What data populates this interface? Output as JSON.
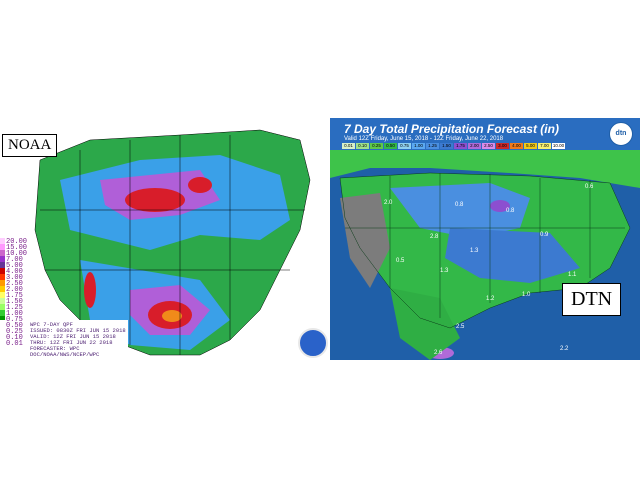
{
  "panels": {
    "noaa": {
      "label": "NOAA",
      "legend_values": [
        "20.00",
        "15.00",
        "10.00",
        "7.00",
        "5.00",
        "4.00",
        "3.00",
        "2.50",
        "2.00",
        "1.75",
        "1.50",
        "1.25",
        "1.00",
        "0.75",
        "0.50",
        "0.25",
        "0.10",
        "0.01"
      ],
      "issued_lines": [
        "WPC 7-DAY QPF",
        "ISSUED: 0830Z FRI JUN 15 2018",
        "VALID: 12Z FRI JUN 15 2018",
        "THRU: 12Z FRI JUN 22 2018",
        "FORECASTER: WPC",
        "DOC/NOAA/NWS/NCEP/WPC"
      ]
    },
    "dtn": {
      "label": "DTN",
      "title": "7 Day Total Precipitation Forecast (in)",
      "subtitle": "Valid 12Z Friday, June 15, 2018 - 12Z Friday, June 22, 2018",
      "logo": "dtn",
      "scale": [
        "0.01",
        "0.10",
        "0.25",
        "0.50",
        "0.75",
        "1.00",
        "1.25",
        "1.50",
        "1.75",
        "2.00",
        "2.50",
        "3.00",
        "4.00",
        "5.00",
        "7.00",
        "10.00"
      ],
      "map_values": [
        "2.0",
        "0.8",
        "0.6",
        "2.8",
        "0.9",
        "1.3",
        "0.8",
        "1.3",
        "1.1",
        "1.0",
        "0.5",
        "1.2",
        "2.2",
        "2.5",
        "2.6"
      ]
    }
  }
}
